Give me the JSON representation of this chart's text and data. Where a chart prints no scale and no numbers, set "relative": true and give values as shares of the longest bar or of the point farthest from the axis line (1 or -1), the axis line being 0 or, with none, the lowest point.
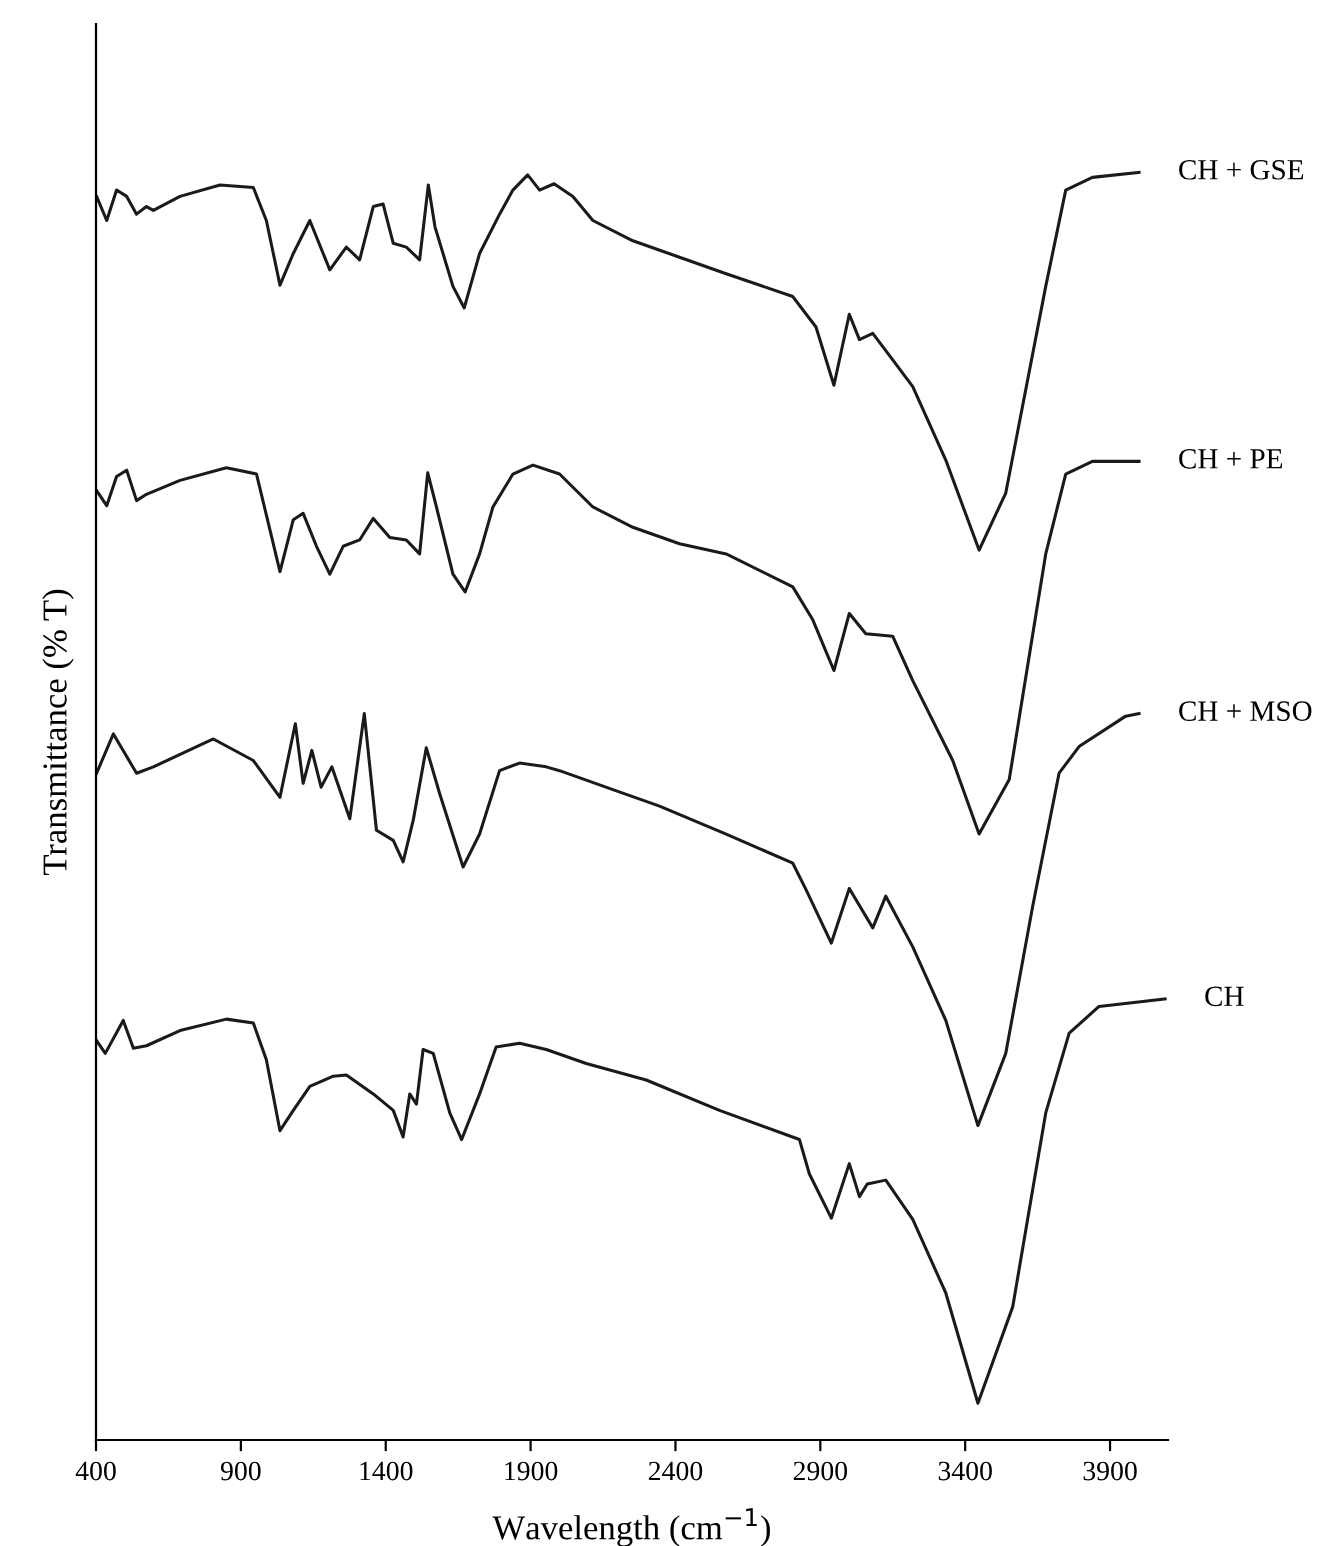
{
  "chart_data": {
    "type": "line",
    "relative": true,
    "xlabel": "Wavelength (cm$^{−1}$)",
    "ylabel": "Transmittance (% T)",
    "xlim": [
      400,
      4100
    ],
    "xticks": [
      400,
      900,
      1400,
      1900,
      2400,
      2900,
      3400,
      3900
    ],
    "tick_labels": "x",
    "grid": false,
    "legend": false,
    "marker": "none",
    "line_style": "solid",
    "series": [
      {
        "name": "CH + GSE",
        "color": "#1a1a1a",
        "x": [
          402,
          437,
          471,
          506,
          540,
          574,
          598,
          690,
          828,
          943,
          988,
          1035,
          1081,
          1138,
          1207,
          1264,
          1310,
          1357,
          1391,
          1426,
          1471,
          1517,
          1547,
          1570,
          1632,
          1671,
          1724,
          1793,
          1839,
          1890,
          1931,
          1981,
          2046,
          2115,
          2253,
          2414,
          2575,
          2805,
          2885,
          2947,
          3000,
          3035,
          3081,
          3150,
          3219,
          3333,
          3448,
          3540,
          3678,
          3747,
          3839,
          4000
        ],
        "values": [
          0.981,
          0.962,
          0.986,
          0.981,
          0.967,
          0.973,
          0.97,
          0.981,
          0.99,
          0.988,
          0.962,
          0.911,
          0.936,
          0.962,
          0.923,
          0.941,
          0.931,
          0.973,
          0.975,
          0.944,
          0.941,
          0.931,
          0.99,
          0.957,
          0.91,
          0.893,
          0.936,
          0.967,
          0.986,
          0.998,
          0.986,
          0.991,
          0.981,
          0.962,
          0.946,
          0.933,
          0.92,
          0.902,
          0.878,
          0.832,
          0.888,
          0.868,
          0.873,
          0.852,
          0.831,
          0.773,
          0.702,
          0.747,
          0.91,
          0.986,
          0.996,
          1.0
        ]
      },
      {
        "name": "CH + PE",
        "color": "#1a1a1a",
        "x": [
          402,
          437,
          471,
          506,
          540,
          574,
          690,
          850,
          954,
          1035,
          1081,
          1115,
          1161,
          1207,
          1253,
          1310,
          1357,
          1414,
          1471,
          1517,
          1545,
          1575,
          1632,
          1674,
          1724,
          1770,
          1839,
          1908,
          2000,
          2115,
          2253,
          2414,
          2575,
          2805,
          2874,
          2947,
          3000,
          3057,
          3150,
          3219,
          3357,
          3448,
          3552,
          3678,
          3747,
          3839,
          4000
        ],
        "values": [
          0.749,
          0.737,
          0.76,
          0.765,
          0.741,
          0.746,
          0.757,
          0.767,
          0.762,
          0.685,
          0.726,
          0.731,
          0.705,
          0.683,
          0.705,
          0.71,
          0.727,
          0.712,
          0.71,
          0.699,
          0.763,
          0.736,
          0.683,
          0.669,
          0.699,
          0.736,
          0.762,
          0.769,
          0.762,
          0.736,
          0.72,
          0.707,
          0.699,
          0.673,
          0.647,
          0.607,
          0.652,
          0.636,
          0.634,
          0.599,
          0.536,
          0.478,
          0.521,
          0.699,
          0.762,
          0.772,
          0.772
        ]
      },
      {
        "name": "CH + MSO",
        "color": "#1a1a1a",
        "x": [
          402,
          460,
          540,
          598,
          805,
          943,
          1035,
          1088,
          1115,
          1145,
          1177,
          1214,
          1276,
          1326,
          1368,
          1426,
          1460,
          1495,
          1540,
          1586,
          1667,
          1724,
          1793,
          1862,
          1954,
          2000,
          2184,
          2345,
          2575,
          2805,
          2851,
          2938,
          3000,
          3081,
          3126,
          3219,
          3333,
          3444,
          3540,
          3633,
          3724,
          3793,
          3954,
          4000
        ],
        "values": [
          0.526,
          0.557,
          0.526,
          0.531,
          0.553,
          0.536,
          0.507,
          0.565,
          0.518,
          0.544,
          0.515,
          0.531,
          0.49,
          0.573,
          0.481,
          0.473,
          0.456,
          0.489,
          0.546,
          0.51,
          0.452,
          0.478,
          0.528,
          0.534,
          0.531,
          0.528,
          0.513,
          0.5,
          0.478,
          0.455,
          0.434,
          0.392,
          0.435,
          0.404,
          0.429,
          0.389,
          0.331,
          0.248,
          0.305,
          0.421,
          0.526,
          0.547,
          0.571,
          0.573
        ]
      },
      {
        "name": "CH",
        "color": "#1a1a1a",
        "x": [
          402,
          432,
          494,
          529,
          574,
          690,
          850,
          943,
          988,
          1035,
          1081,
          1138,
          1219,
          1264,
          1357,
          1426,
          1460,
          1483,
          1506,
          1529,
          1564,
          1621,
          1662,
          1724,
          1781,
          1862,
          1954,
          2092,
          2299,
          2552,
          2828,
          2862,
          2938,
          3000,
          3035,
          3062,
          3126,
          3219,
          3333,
          3444,
          3564,
          3678,
          3759,
          3862,
          4090
        ],
        "values": [
          0.315,
          0.305,
          0.331,
          0.309,
          0.311,
          0.323,
          0.332,
          0.329,
          0.3,
          0.244,
          0.26,
          0.279,
          0.287,
          0.288,
          0.273,
          0.26,
          0.239,
          0.273,
          0.265,
          0.308,
          0.305,
          0.258,
          0.237,
          0.273,
          0.31,
          0.313,
          0.308,
          0.297,
          0.284,
          0.26,
          0.237,
          0.21,
          0.175,
          0.218,
          0.192,
          0.202,
          0.205,
          0.174,
          0.116,
          0.029,
          0.105,
          0.258,
          0.321,
          0.342,
          0.348
        ]
      }
    ]
  }
}
